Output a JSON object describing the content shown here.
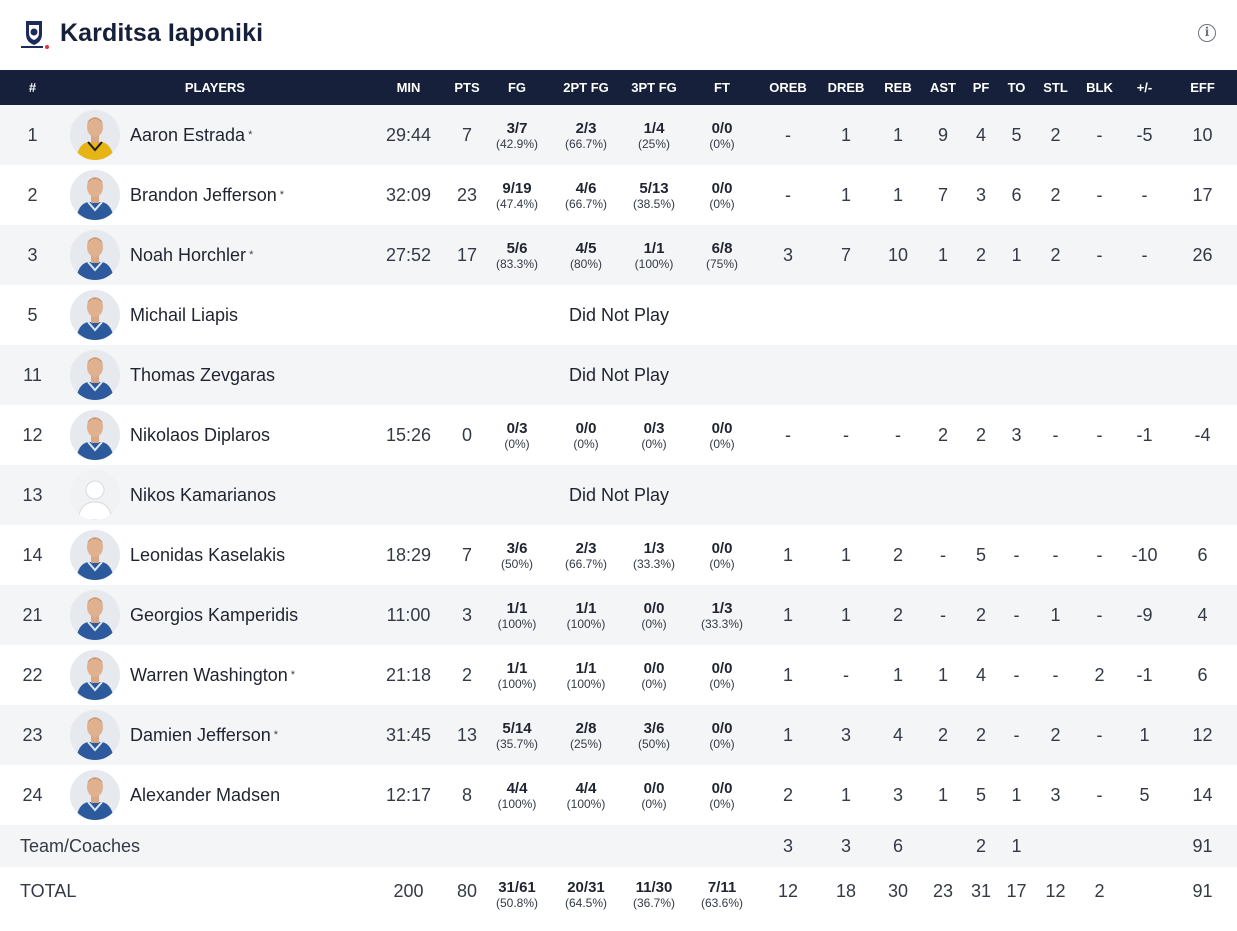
{
  "team": {
    "name": "Karditsa Iaponiki",
    "logo_icon": "team-logo-icon",
    "info_icon": "info-icon",
    "info_glyph": "i"
  },
  "colors": {
    "header_bg": "#17203a",
    "row_alt": "#f4f5f7"
  },
  "columns": [
    "#",
    "PLAYERS",
    "MIN",
    "PTS",
    "FG",
    "2PT FG",
    "3PT FG",
    "FT",
    "OREB",
    "DREB",
    "REB",
    "AST",
    "PF",
    "TO",
    "STL",
    "BLK",
    "+/-",
    "EFF"
  ],
  "starter_mark": "*",
  "dnp_text": "Did Not Play",
  "players": [
    {
      "no": "1",
      "name": "Aaron Estrada",
      "starter": true,
      "dnp": false,
      "min": "29:44",
      "pts": "7",
      "fg": [
        "3/7",
        "(42.9%)"
      ],
      "fg2": [
        "2/3",
        "(66.7%)"
      ],
      "fg3": [
        "1/4",
        "(25%)"
      ],
      "ft": [
        "0/0",
        "(0%)"
      ],
      "oreb": "-",
      "dreb": "1",
      "reb": "1",
      "ast": "9",
      "pf": "4",
      "to": "5",
      "stl": "2",
      "blk": "-",
      "pm": "-5",
      "eff": "10",
      "jersey": "yellow"
    },
    {
      "no": "2",
      "name": "Brandon Jefferson",
      "starter": true,
      "dnp": false,
      "min": "32:09",
      "pts": "23",
      "fg": [
        "9/19",
        "(47.4%)"
      ],
      "fg2": [
        "4/6",
        "(66.7%)"
      ],
      "fg3": [
        "5/13",
        "(38.5%)"
      ],
      "ft": [
        "0/0",
        "(0%)"
      ],
      "oreb": "-",
      "dreb": "1",
      "reb": "1",
      "ast": "7",
      "pf": "3",
      "to": "6",
      "stl": "2",
      "blk": "-",
      "pm": "-",
      "eff": "17",
      "jersey": "blue"
    },
    {
      "no": "3",
      "name": "Noah Horchler",
      "starter": true,
      "dnp": false,
      "min": "27:52",
      "pts": "17",
      "fg": [
        "5/6",
        "(83.3%)"
      ],
      "fg2": [
        "4/5",
        "(80%)"
      ],
      "fg3": [
        "1/1",
        "(100%)"
      ],
      "ft": [
        "6/8",
        "(75%)"
      ],
      "oreb": "3",
      "dreb": "7",
      "reb": "10",
      "ast": "1",
      "pf": "2",
      "to": "1",
      "stl": "2",
      "blk": "-",
      "pm": "-",
      "eff": "26",
      "jersey": "blue"
    },
    {
      "no": "5",
      "name": "Michail Liapis",
      "starter": false,
      "dnp": true,
      "jersey": "blue"
    },
    {
      "no": "11",
      "name": "Thomas Zevgaras",
      "starter": false,
      "dnp": true,
      "jersey": "blue"
    },
    {
      "no": "12",
      "name": "Nikolaos Diplaros",
      "starter": false,
      "dnp": false,
      "min": "15:26",
      "pts": "0",
      "fg": [
        "0/3",
        "(0%)"
      ],
      "fg2": [
        "0/0",
        "(0%)"
      ],
      "fg3": [
        "0/3",
        "(0%)"
      ],
      "ft": [
        "0/0",
        "(0%)"
      ],
      "oreb": "-",
      "dreb": "-",
      "reb": "-",
      "ast": "2",
      "pf": "2",
      "to": "3",
      "stl": "-",
      "blk": "-",
      "pm": "-1",
      "eff": "-4",
      "jersey": "blue"
    },
    {
      "no": "13",
      "name": "Nikos Kamarianos",
      "starter": false,
      "dnp": true,
      "jersey": "none"
    },
    {
      "no": "14",
      "name": "Leonidas Kaselakis",
      "starter": false,
      "dnp": false,
      "min": "18:29",
      "pts": "7",
      "fg": [
        "3/6",
        "(50%)"
      ],
      "fg2": [
        "2/3",
        "(66.7%)"
      ],
      "fg3": [
        "1/3",
        "(33.3%)"
      ],
      "ft": [
        "0/0",
        "(0%)"
      ],
      "oreb": "1",
      "dreb": "1",
      "reb": "2",
      "ast": "-",
      "pf": "5",
      "to": "-",
      "stl": "-",
      "blk": "-",
      "pm": "-10",
      "eff": "6",
      "jersey": "blue"
    },
    {
      "no": "21",
      "name": "Georgios Kamperidis",
      "starter": false,
      "dnp": false,
      "min": "11:00",
      "pts": "3",
      "fg": [
        "1/1",
        "(100%)"
      ],
      "fg2": [
        "1/1",
        "(100%)"
      ],
      "fg3": [
        "0/0",
        "(0%)"
      ],
      "ft": [
        "1/3",
        "(33.3%)"
      ],
      "oreb": "1",
      "dreb": "1",
      "reb": "2",
      "ast": "-",
      "pf": "2",
      "to": "-",
      "stl": "1",
      "blk": "-",
      "pm": "-9",
      "eff": "4",
      "jersey": "blue"
    },
    {
      "no": "22",
      "name": "Warren Washington",
      "starter": true,
      "dnp": false,
      "min": "21:18",
      "pts": "2",
      "fg": [
        "1/1",
        "(100%)"
      ],
      "fg2": [
        "1/1",
        "(100%)"
      ],
      "fg3": [
        "0/0",
        "(0%)"
      ],
      "ft": [
        "0/0",
        "(0%)"
      ],
      "oreb": "1",
      "dreb": "-",
      "reb": "1",
      "ast": "1",
      "pf": "4",
      "to": "-",
      "stl": "-",
      "blk": "2",
      "pm": "-1",
      "eff": "6",
      "jersey": "blue"
    },
    {
      "no": "23",
      "name": "Damien Jefferson",
      "starter": true,
      "dnp": false,
      "min": "31:45",
      "pts": "13",
      "fg": [
        "5/14",
        "(35.7%)"
      ],
      "fg2": [
        "2/8",
        "(25%)"
      ],
      "fg3": [
        "3/6",
        "(50%)"
      ],
      "ft": [
        "0/0",
        "(0%)"
      ],
      "oreb": "1",
      "dreb": "3",
      "reb": "4",
      "ast": "2",
      "pf": "2",
      "to": "-",
      "stl": "2",
      "blk": "-",
      "pm": "1",
      "eff": "12",
      "jersey": "blue"
    },
    {
      "no": "24",
      "name": "Alexander Madsen",
      "starter": false,
      "dnp": false,
      "min": "12:17",
      "pts": "8",
      "fg": [
        "4/4",
        "(100%)"
      ],
      "fg2": [
        "4/4",
        "(100%)"
      ],
      "fg3": [
        "0/0",
        "(0%)"
      ],
      "ft": [
        "0/0",
        "(0%)"
      ],
      "oreb": "2",
      "dreb": "1",
      "reb": "3",
      "ast": "1",
      "pf": "5",
      "to": "1",
      "stl": "3",
      "blk": "-",
      "pm": "5",
      "eff": "14",
      "jersey": "blue"
    }
  ],
  "team_row": {
    "label": "Team/Coaches",
    "oreb": "3",
    "dreb": "3",
    "reb": "6",
    "pf": "2",
    "to": "1",
    "eff": "91"
  },
  "total_row": {
    "label": "TOTAL",
    "min": "200",
    "pts": "80",
    "fg": [
      "31/61",
      "(50.8%)"
    ],
    "fg2": [
      "20/31",
      "(64.5%)"
    ],
    "fg3": [
      "11/30",
      "(36.7%)"
    ],
    "ft": [
      "7/11",
      "(63.6%)"
    ],
    "oreb": "12",
    "dreb": "18",
    "reb": "30",
    "ast": "23",
    "pf": "31",
    "to": "17",
    "stl": "12",
    "blk": "2",
    "pm": "",
    "eff": "91"
  }
}
